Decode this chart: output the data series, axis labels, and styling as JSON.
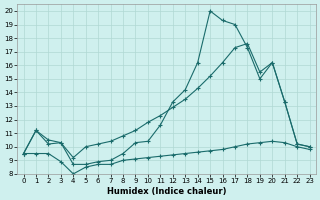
{
  "xlabel": "Humidex (Indice chaleur)",
  "background_color": "#cff0ee",
  "grid_color": "#b0d8d4",
  "line_color": "#1a6b6b",
  "xlim": [
    -0.5,
    23.5
  ],
  "ylim": [
    8,
    20.5
  ],
  "yticks": [
    8,
    9,
    10,
    11,
    12,
    13,
    14,
    15,
    16,
    17,
    18,
    19,
    20
  ],
  "xticks": [
    0,
    1,
    2,
    3,
    4,
    5,
    6,
    7,
    8,
    9,
    10,
    11,
    12,
    13,
    14,
    15,
    16,
    17,
    18,
    19,
    20,
    21,
    22,
    23
  ],
  "line1_x": [
    0,
    1,
    2,
    3,
    4,
    5,
    6,
    7,
    8,
    9,
    10,
    11,
    12,
    13,
    14,
    15,
    16,
    17,
    18,
    19,
    20,
    21,
    22,
    23
  ],
  "line1_y": [
    9.5,
    11.2,
    10.2,
    10.3,
    8.7,
    8.7,
    8.9,
    9.0,
    9.5,
    10.3,
    10.4,
    11.6,
    13.3,
    14.2,
    16.2,
    20.0,
    19.3,
    19.0,
    17.3,
    15.0,
    16.2,
    13.3,
    10.2,
    10.0
  ],
  "line2_x": [
    0,
    1,
    2,
    3,
    4,
    5,
    6,
    7,
    8,
    9,
    10,
    11,
    12,
    13,
    14,
    15,
    16,
    17,
    18,
    19,
    20,
    21,
    22,
    23
  ],
  "line2_y": [
    9.5,
    11.2,
    10.5,
    10.3,
    9.2,
    10.0,
    10.2,
    10.4,
    10.8,
    11.2,
    11.8,
    12.3,
    12.9,
    13.5,
    14.3,
    15.2,
    16.2,
    17.3,
    17.6,
    15.5,
    16.2,
    13.3,
    10.2,
    10.0
  ],
  "line3_x": [
    0,
    1,
    2,
    3,
    4,
    5,
    6,
    7,
    8,
    9,
    10,
    11,
    12,
    13,
    14,
    15,
    16,
    17,
    18,
    19,
    20,
    21,
    22,
    23
  ],
  "line3_y": [
    9.5,
    9.5,
    9.5,
    8.9,
    8.0,
    8.5,
    8.7,
    8.7,
    9.0,
    9.1,
    9.2,
    9.3,
    9.4,
    9.5,
    9.6,
    9.7,
    9.8,
    10.0,
    10.2,
    10.3,
    10.4,
    10.3,
    10.0,
    9.8
  ]
}
